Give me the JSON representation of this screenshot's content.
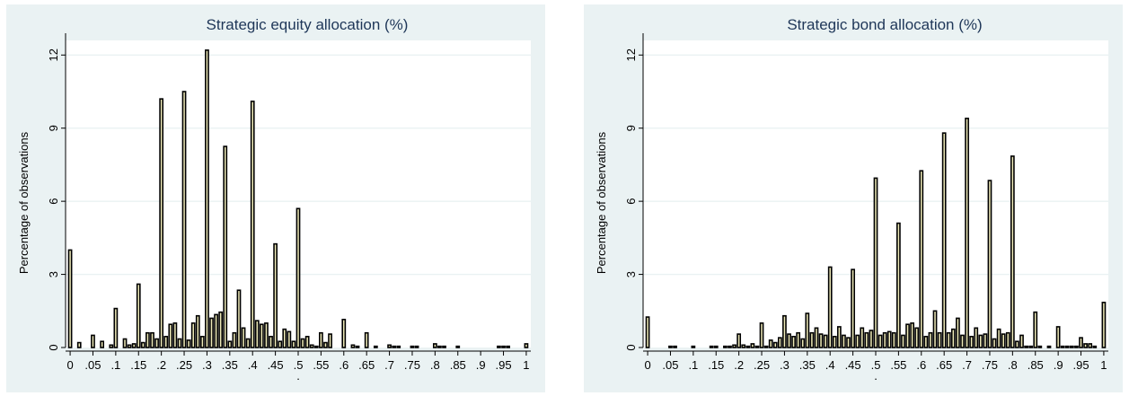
{
  "chart_data": [
    {
      "type": "bar",
      "title": "Strategic equity allocation (%)",
      "xlabel": ".",
      "ylabel": "Percentage of observations",
      "xlim": [
        -0.01,
        1.01
      ],
      "ylim": [
        0,
        12.6
      ],
      "yticks": [
        0,
        3,
        6,
        9,
        12
      ],
      "xticks": [
        0,
        0.05,
        0.1,
        0.15,
        0.2,
        0.25,
        0.3,
        0.35,
        0.4,
        0.45,
        0.5,
        0.55,
        0.6,
        0.65,
        0.7,
        0.75,
        0.8,
        0.85,
        0.9,
        0.95,
        1
      ],
      "xtick_labels": [
        "0",
        ".05",
        ".1",
        ".15",
        ".2",
        ".25",
        ".3",
        ".35",
        ".4",
        ".45",
        ".5",
        ".55",
        ".6",
        ".65",
        ".7",
        ".75",
        ".8",
        ".85",
        ".9",
        ".95",
        "1"
      ],
      "grid": "horizontal",
      "colors": {
        "background": "#eaf2f3",
        "plot_region": "#ffffff",
        "bar_fill": "#eeeab8",
        "bar_stroke": "#000000",
        "grid": "#eaf2f3",
        "title": "#1e3658"
      },
      "x": [
        0,
        0.01,
        0.02,
        0.03,
        0.04,
        0.05,
        0.06,
        0.07,
        0.08,
        0.09,
        0.1,
        0.11,
        0.12,
        0.13,
        0.14,
        0.15,
        0.16,
        0.17,
        0.18,
        0.19,
        0.2,
        0.21,
        0.22,
        0.23,
        0.24,
        0.25,
        0.26,
        0.27,
        0.28,
        0.29,
        0.3,
        0.31,
        0.32,
        0.33,
        0.34,
        0.35,
        0.36,
        0.37,
        0.38,
        0.39,
        0.4,
        0.41,
        0.42,
        0.43,
        0.44,
        0.45,
        0.46,
        0.47,
        0.48,
        0.49,
        0.5,
        0.51,
        0.52,
        0.53,
        0.54,
        0.55,
        0.56,
        0.57,
        0.58,
        0.59,
        0.6,
        0.61,
        0.62,
        0.63,
        0.64,
        0.65,
        0.66,
        0.67,
        0.68,
        0.69,
        0.7,
        0.71,
        0.72,
        0.73,
        0.74,
        0.75,
        0.76,
        0.77,
        0.78,
        0.79,
        0.8,
        0.81,
        0.82,
        0.83,
        0.84,
        0.85,
        0.86,
        0.87,
        0.88,
        0.89,
        0.9,
        0.91,
        0.92,
        0.93,
        0.94,
        0.95,
        0.96,
        0.97,
        0.98,
        0.99,
        1
      ],
      "values": [
        4.0,
        0.0,
        0.2,
        0.0,
        0.0,
        0.5,
        0.0,
        0.25,
        0.0,
        0.1,
        1.6,
        0.0,
        0.35,
        0.1,
        0.15,
        2.6,
        0.2,
        0.6,
        0.6,
        0.35,
        10.2,
        0.45,
        0.95,
        1.0,
        0.35,
        10.5,
        0.3,
        1.0,
        1.3,
        0.45,
        12.2,
        1.2,
        1.35,
        1.45,
        8.25,
        0.25,
        0.6,
        2.35,
        0.8,
        0.35,
        10.1,
        1.1,
        0.95,
        1.0,
        0.45,
        4.25,
        0.25,
        0.75,
        0.65,
        0.25,
        5.7,
        0.35,
        0.45,
        0.1,
        0.05,
        0.6,
        0.2,
        0.55,
        0.0,
        0.0,
        1.15,
        0.0,
        0.1,
        0.05,
        0.0,
        0.6,
        0.0,
        0.05,
        0.0,
        0.0,
        0.1,
        0.05,
        0.05,
        0.0,
        0.0,
        0.05,
        0.05,
        0.0,
        0.0,
        0.0,
        0.15,
        0.05,
        0.05,
        0.0,
        0.0,
        0.05,
        0.0,
        0.0,
        0.0,
        0.0,
        0.0,
        0.0,
        0.0,
        0.0,
        0.05,
        0.05,
        0.05,
        0.0,
        0.0,
        0.0,
        0.15
      ]
    },
    {
      "type": "bar",
      "title": "Strategic bond allocation (%)",
      "xlabel": ".",
      "ylabel": "Percentage of observations",
      "xlim": [
        -0.01,
        1.01
      ],
      "ylim": [
        0,
        12.6
      ],
      "yticks": [
        0,
        3,
        6,
        9,
        12
      ],
      "xticks": [
        0,
        0.05,
        0.1,
        0.15,
        0.2,
        0.25,
        0.3,
        0.35,
        0.4,
        0.45,
        0.5,
        0.55,
        0.6,
        0.65,
        0.7,
        0.75,
        0.8,
        0.85,
        0.9,
        0.95,
        1
      ],
      "xtick_labels": [
        "0",
        ".05",
        ".1",
        ".15",
        ".2",
        ".25",
        ".3",
        ".35",
        ".4",
        ".45",
        ".5",
        ".55",
        ".6",
        ".65",
        ".7",
        ".75",
        ".8",
        ".85",
        ".9",
        ".95",
        "1"
      ],
      "grid": "horizontal",
      "colors": {
        "background": "#eaf2f3",
        "plot_region": "#ffffff",
        "bar_fill": "#eeeab8",
        "bar_stroke": "#000000",
        "grid": "#eaf2f3",
        "title": "#1e3658"
      },
      "x": [
        0,
        0.01,
        0.02,
        0.03,
        0.04,
        0.05,
        0.06,
        0.07,
        0.08,
        0.09,
        0.1,
        0.11,
        0.12,
        0.13,
        0.14,
        0.15,
        0.16,
        0.17,
        0.18,
        0.19,
        0.2,
        0.21,
        0.22,
        0.23,
        0.24,
        0.25,
        0.26,
        0.27,
        0.28,
        0.29,
        0.3,
        0.31,
        0.32,
        0.33,
        0.34,
        0.35,
        0.36,
        0.37,
        0.38,
        0.39,
        0.4,
        0.41,
        0.42,
        0.43,
        0.44,
        0.45,
        0.46,
        0.47,
        0.48,
        0.49,
        0.5,
        0.51,
        0.52,
        0.53,
        0.54,
        0.55,
        0.56,
        0.57,
        0.58,
        0.59,
        0.6,
        0.61,
        0.62,
        0.63,
        0.64,
        0.65,
        0.66,
        0.67,
        0.68,
        0.69,
        0.7,
        0.71,
        0.72,
        0.73,
        0.74,
        0.75,
        0.76,
        0.77,
        0.78,
        0.79,
        0.8,
        0.81,
        0.82,
        0.83,
        0.84,
        0.85,
        0.86,
        0.87,
        0.88,
        0.89,
        0.9,
        0.91,
        0.92,
        0.93,
        0.94,
        0.95,
        0.96,
        0.97,
        0.98,
        0.99,
        1
      ],
      "values": [
        1.25,
        0.0,
        0.0,
        0.0,
        0.0,
        0.05,
        0.05,
        0.0,
        0.0,
        0.0,
        0.05,
        0.0,
        0.0,
        0.0,
        0.05,
        0.05,
        0.0,
        0.05,
        0.05,
        0.1,
        0.55,
        0.1,
        0.05,
        0.15,
        0.05,
        1.0,
        0.05,
        0.3,
        0.2,
        0.4,
        1.3,
        0.55,
        0.45,
        0.6,
        0.35,
        1.4,
        0.6,
        0.8,
        0.55,
        0.5,
        3.3,
        0.45,
        0.85,
        0.5,
        0.4,
        3.2,
        0.5,
        0.8,
        0.6,
        0.7,
        6.95,
        0.5,
        0.6,
        0.65,
        0.6,
        5.1,
        0.5,
        0.95,
        1.0,
        0.8,
        7.25,
        0.45,
        0.6,
        1.5,
        0.6,
        8.8,
        0.6,
        0.75,
        1.2,
        0.5,
        9.4,
        0.45,
        0.8,
        0.5,
        0.55,
        6.85,
        0.35,
        0.75,
        0.55,
        0.6,
        7.85,
        0.25,
        0.5,
        0.05,
        0.05,
        1.45,
        0.05,
        0.0,
        0.05,
        0.0,
        0.85,
        0.05,
        0.05,
        0.05,
        0.05,
        0.4,
        0.15,
        0.15,
        0.05,
        0.0,
        1.85
      ]
    }
  ]
}
